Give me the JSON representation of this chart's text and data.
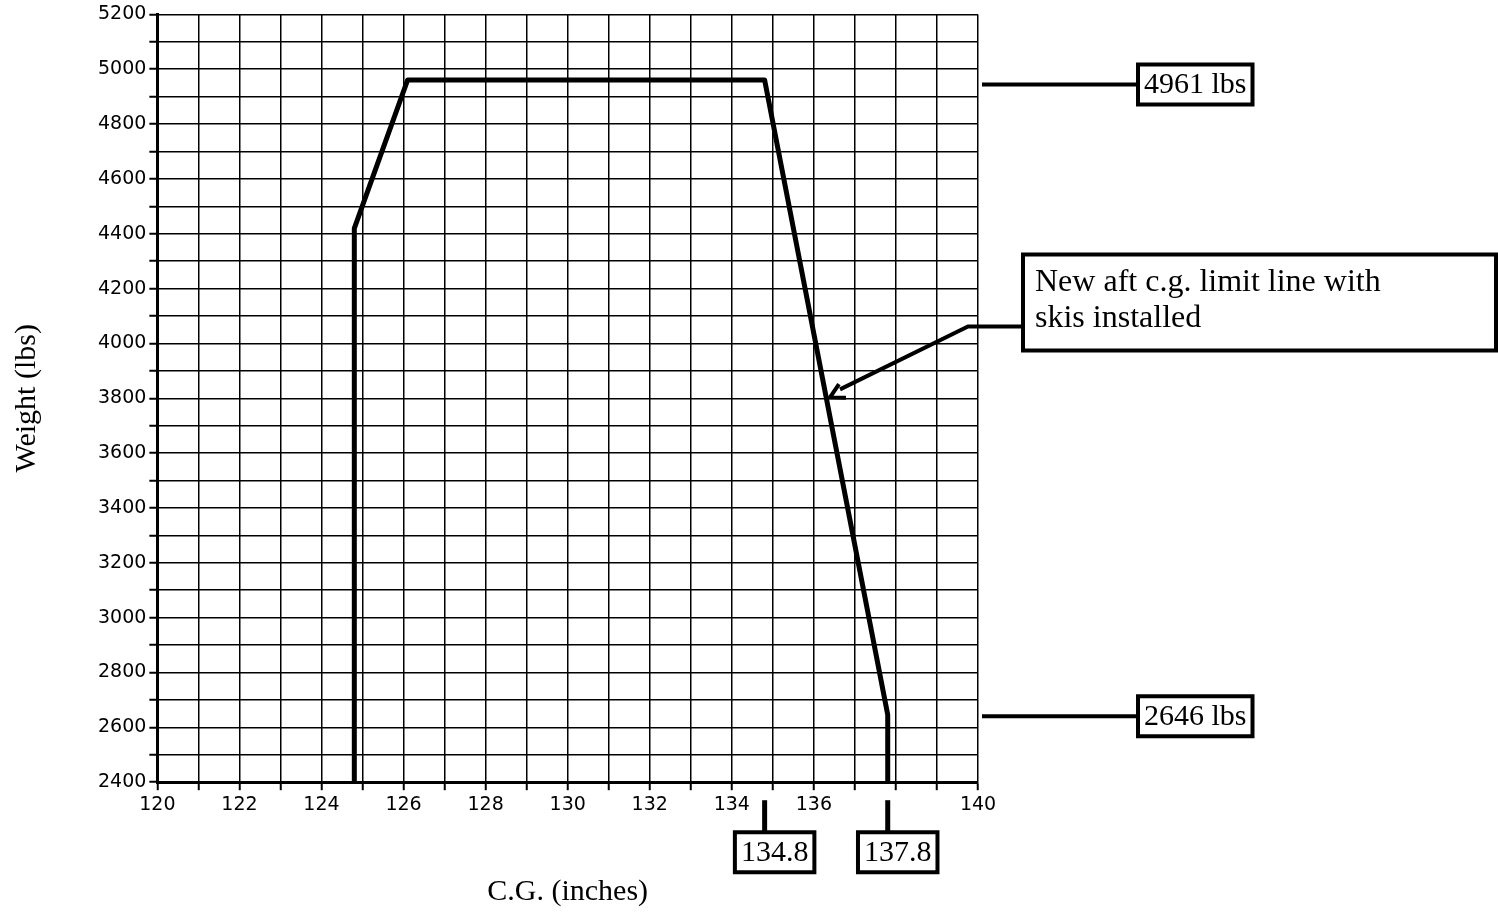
{
  "chart_data": {
    "type": "line",
    "xlabel": "C.G. (inches)",
    "ylabel": "Weight (lbs)",
    "series": [
      {
        "color": "#000000",
        "x": [
          124.8,
          124.8,
          126.1,
          134.8,
          137.8,
          137.8
        ],
        "values": [
          2400,
          4420,
          4961,
          4961,
          2646,
          2400
        ]
      }
    ],
    "xlim": [
      120,
      140
    ],
    "xticks": [
      120,
      {
        "value": 121,
        "label": null
      },
      122,
      {
        "value": 123,
        "label": null
      },
      124,
      {
        "value": 125,
        "label": null
      },
      126,
      {
        "value": 127,
        "label": null
      },
      128,
      {
        "value": 129,
        "label": null
      },
      130,
      {
        "value": 131,
        "label": null
      },
      132,
      {
        "value": 133,
        "label": null
      },
      134,
      {
        "value": 135,
        "label": null
      },
      136,
      {
        "value": 137,
        "label": null
      },
      {
        "value": 138,
        "label": null
      },
      {
        "value": 139,
        "label": null
      },
      140
    ],
    "ylim": [
      2400,
      5200
    ],
    "yticks": [
      2400,
      {
        "value": 2500,
        "label": null
      },
      2600,
      {
        "value": 2700,
        "label": null
      },
      2800,
      {
        "value": 2900,
        "label": null
      },
      3000,
      {
        "value": 3100,
        "label": null
      },
      3200,
      {
        "value": 3300,
        "label": null
      },
      3400,
      {
        "value": 3500,
        "label": null
      },
      3600,
      {
        "value": 3700,
        "label": null
      },
      3800,
      {
        "value": 3900,
        "label": null
      },
      4000,
      {
        "value": 4100,
        "label": null
      },
      4200,
      {
        "value": 4300,
        "label": null
      },
      4400,
      {
        "value": 4500,
        "label": null
      },
      4600,
      {
        "value": 4700,
        "label": null
      },
      4800,
      {
        "value": 4900,
        "label": null
      },
      5000,
      {
        "value": 5100,
        "label": null
      },
      5200
    ],
    "grid": true,
    "legend": false,
    "marker": "none",
    "line_style": "solid",
    "annotations": [
      "4961 lbs",
      "New aft c.g. limit line with skis installed",
      "2646 lbs",
      {
        "text": "134.8",
        "x": 134.8
      },
      {
        "text": "137.8",
        "x": 137.8
      }
    ]
  }
}
